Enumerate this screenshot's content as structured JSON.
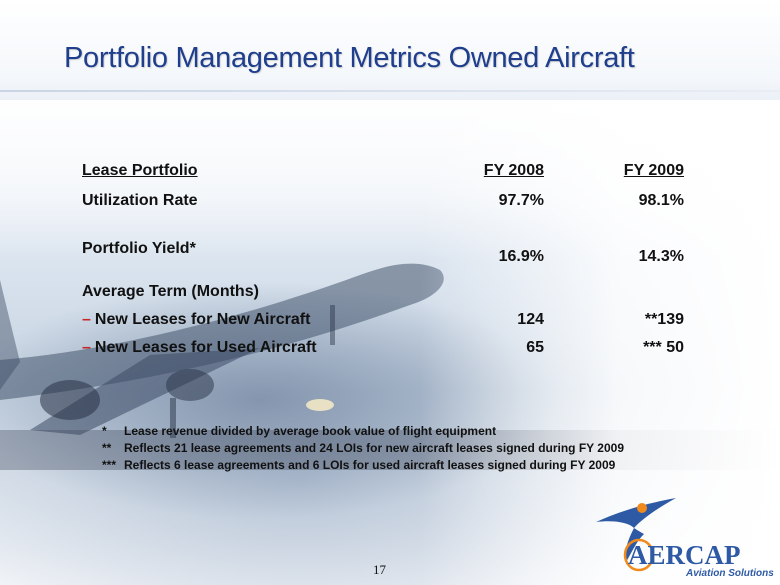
{
  "slide": {
    "title": "Portfolio Management Metrics Owned Aircraft",
    "page_number": "17"
  },
  "table": {
    "header": {
      "label": "Lease Portfolio",
      "fy2008": "FY 2008",
      "fy2009": "FY 2009"
    },
    "rows": [
      {
        "label": "Utilization Rate",
        "fy2008": "97.7%",
        "fy2009": "98.1%"
      },
      {
        "label": "Portfolio Yield*",
        "fy2008": "16.9%",
        "fy2009": "14.3%"
      },
      {
        "label": "Average Term (Months)",
        "fy2008": "",
        "fy2009": ""
      },
      {
        "dash": "–",
        "label": "New Leases for New Aircraft",
        "fy2008": "124",
        "fy2009": "**139"
      },
      {
        "dash": "–",
        "label": "New Leases for Used Aircraft",
        "fy2008": "65",
        "fy2009": "*** 50"
      }
    ]
  },
  "footnotes": [
    {
      "mark": "*",
      "text": "Lease revenue divided by average book value of flight equipment"
    },
    {
      "mark": "**",
      "text": "Reflects 21 lease agreements and 24 LOIs for new aircraft leases signed during FY 2009"
    },
    {
      "mark": "***",
      "text": "Reflects 6 lease agreements and 6 LOIs for used aircraft leases signed during FY 2009"
    }
  ],
  "logo": {
    "name": "AERCAP",
    "tagline": "Aviation Solutions"
  },
  "colors": {
    "title": "#1f3e8c",
    "dash": "#c62828",
    "logo_blue": "#2e5aa5",
    "logo_orange": "#f08a1c"
  }
}
